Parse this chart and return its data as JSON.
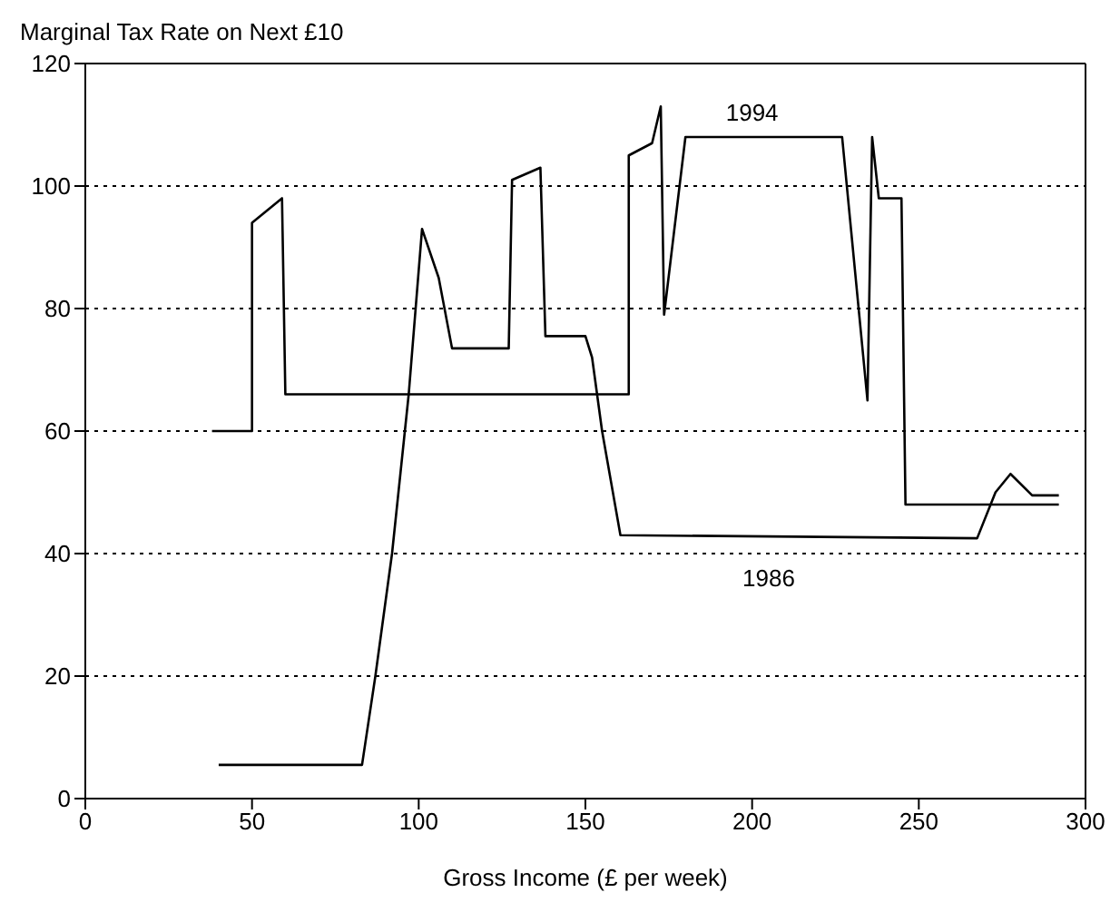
{
  "chart_data": {
    "type": "line",
    "ylabel": "Marginal Tax Rate on Next £10",
    "xlabel": "Gross Income (£ per week)",
    "xlim": [
      0,
      300
    ],
    "xticks": [
      0,
      50,
      100,
      150,
      200,
      250,
      300
    ],
    "ylim": [
      0,
      120
    ],
    "yticks": [
      0,
      20,
      40,
      60,
      80,
      100,
      120
    ],
    "grid": "y",
    "legend": false,
    "marker": "none",
    "line_style": "solid",
    "series": [
      {
        "name": "1994",
        "color": "#000000",
        "x": [
          38,
          50,
          50,
          59,
          60,
          163,
          163,
          170,
          172.6,
          173.6,
          180,
          227,
          234.6,
          236,
          238,
          244.8,
          246,
          292
        ],
        "values": [
          60,
          60,
          94,
          98,
          66,
          66,
          105,
          107,
          113,
          79,
          108,
          108,
          65,
          108,
          98,
          98,
          48,
          48
        ]
      },
      {
        "name": "1986",
        "color": "#000000",
        "x": [
          40,
          83,
          87,
          92,
          97,
          101,
          106,
          110,
          127,
          128,
          136.5,
          138,
          150,
          152,
          155,
          160.5,
          267.5,
          273,
          277.5,
          284,
          292
        ],
        "values": [
          5.5,
          5.5,
          20,
          40,
          66,
          93,
          85,
          73.5,
          73.5,
          101,
          103,
          75.5,
          75.5,
          72,
          60,
          43,
          42.5,
          50,
          53,
          49.5,
          49.5
        ]
      }
    ]
  }
}
